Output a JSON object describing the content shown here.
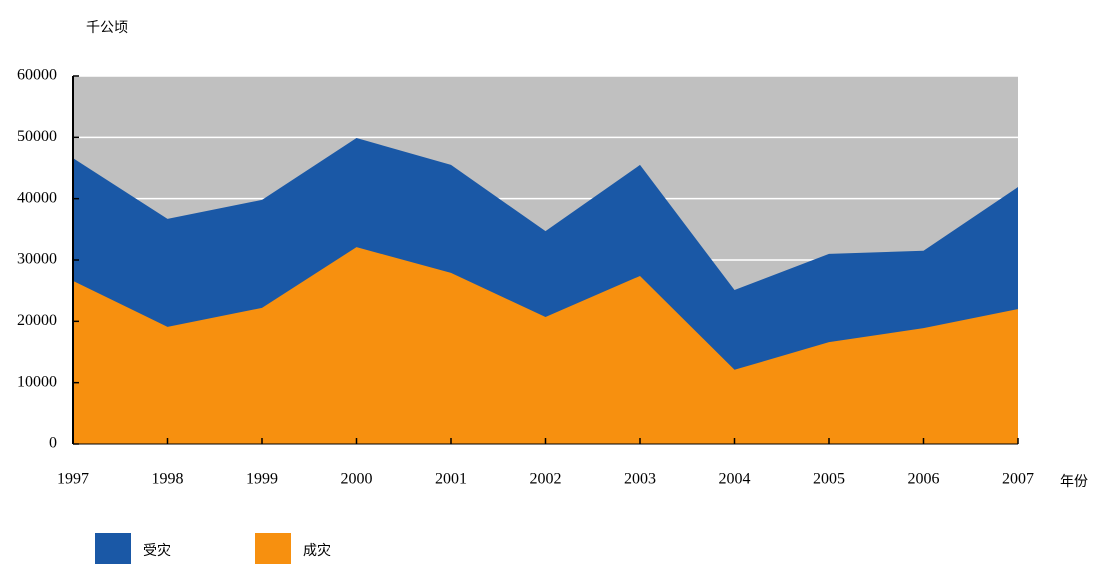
{
  "chart_data": {
    "type": "area",
    "y_label": "千公顷",
    "x_label": "年份",
    "x": [
      1997,
      1998,
      1999,
      2000,
      2001,
      2002,
      2003,
      2004,
      2005,
      2006,
      2007
    ],
    "xlim": [
      1997,
      2007
    ],
    "series": [
      {
        "name": "受灾",
        "color": "#1a58a6",
        "values": [
          46600,
          36700,
          39800,
          49900,
          45500,
          34700,
          45500,
          25100,
          31000,
          31500,
          41900
        ]
      },
      {
        "name": "成灾",
        "color": "#f7900f",
        "values": [
          26600,
          19100,
          22200,
          32100,
          27900,
          20700,
          27400,
          12100,
          16600,
          18900,
          22000
        ]
      }
    ],
    "ylim": [
      0,
      60000
    ],
    "yticks": [
      0,
      10000,
      20000,
      30000,
      40000,
      50000,
      60000
    ],
    "grid": true,
    "background": "#c0c0c0"
  }
}
